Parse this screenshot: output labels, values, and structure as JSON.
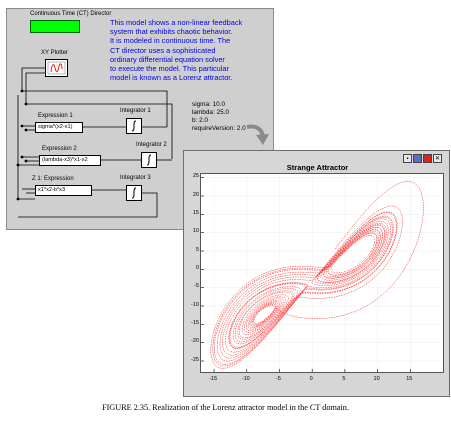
{
  "editor": {
    "director_label": "Continuous Time (CT) Director",
    "description": [
      "This model shows a non-linear feedback",
      "system that exhibits chaotic behavior.",
      "It is modeled in continuous time. The",
      "CT director uses a sophisticated",
      "ordinary differential equation solver",
      "to execute the model. This particular",
      "model is known as a Lorenz attractor."
    ],
    "parameters": [
      "sigma: 10.0",
      "lambda: 25.0",
      "b: 2.0",
      "requireVersion: 2.0"
    ],
    "xy_plotter_label": "XY Plotter",
    "expression1": {
      "title": "Expression 1",
      "value": "sigma*(x2-x1)"
    },
    "expression2": {
      "title": "Expression 2",
      "value": "(lambda-x3)*x1-x2"
    },
    "expression3": {
      "title": "Z 1: Expression",
      "value": "x1*x2-b*x3"
    },
    "integrators": [
      "Integrator 1",
      "Integrator 2",
      "Integrator 3"
    ],
    "colors": {
      "director": "#00ff00",
      "description": "#0000ee",
      "curve": "#ff0000"
    }
  },
  "plot_window": {
    "title": "Strange Attractor",
    "toolbar_icons": [
      "print-icon",
      "save-icon",
      "fill-icon",
      "reset-icon"
    ]
  },
  "chart_data": {
    "type": "line",
    "title": "Strange Attractor",
    "xlabel": "",
    "ylabel": "",
    "xlim": [
      -17,
      20
    ],
    "ylim": [
      -28,
      26
    ],
    "x_ticks": [
      "-15",
      "-10",
      "-5",
      "0",
      "5",
      "10",
      "15"
    ],
    "y_ticks": [
      "25",
      "20",
      "15",
      "10",
      "5",
      "0",
      "-5",
      "-10",
      "-15",
      "-20",
      "-25"
    ],
    "grid": true,
    "series": [
      {
        "color": "#ff0000",
        "model": "lorenz",
        "sigma": 10,
        "lambda": 25,
        "b": 2,
        "plotted": [
          "x1",
          "x2"
        ],
        "x_range": [
          -15.5,
          17
        ],
        "y_range": [
          -27,
          24
        ]
      }
    ]
  },
  "caption": "FIGURE 2.35.  Realization of the Lorenz attractor model in the CT domain."
}
